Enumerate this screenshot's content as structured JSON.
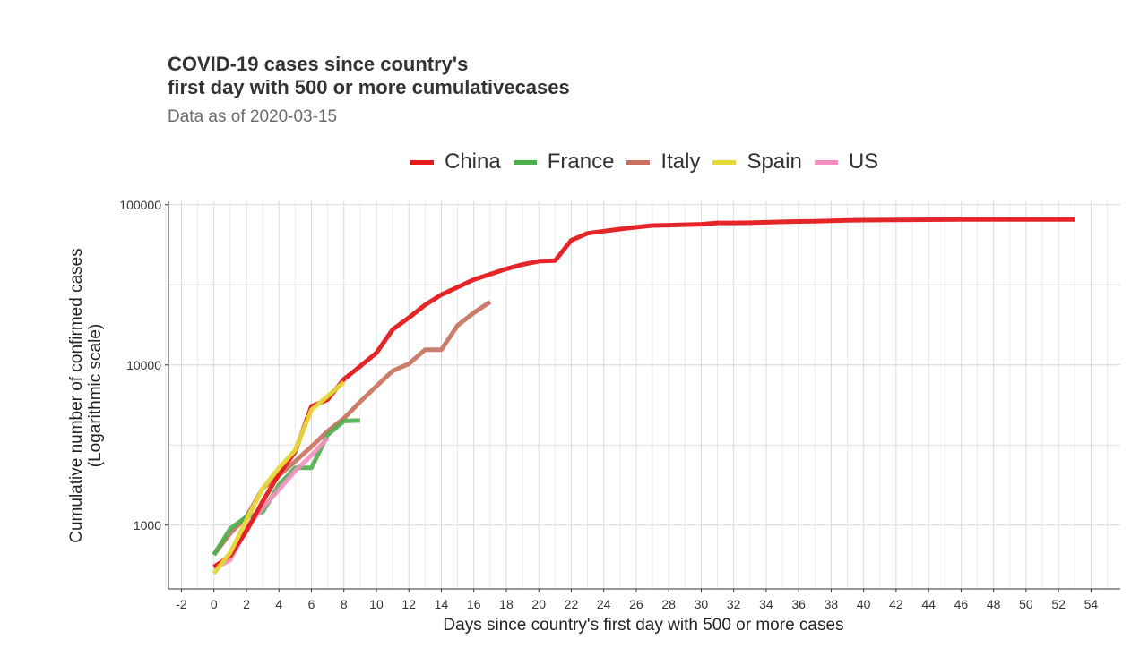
{
  "header": {
    "title_line1": "COVID-19 cases since country's",
    "title_line2": "first day with 500 or more cumulativecases",
    "subtitle": "Data as of 2020-03-15"
  },
  "chart_data": {
    "type": "line",
    "title": "COVID-19 cases since country's first day with 500 or more cumulativecases",
    "subtitle": "Data as of 2020-03-15",
    "xlabel": "Days since country's first day with 500 or more cases",
    "ylabel": "Cumulative number of confirmed cases (Logarithmic scale)",
    "ylabel_line1": "Cumulative number of confirmed cases",
    "ylabel_line2": "(Logarithmic scale)",
    "y_scale": "log",
    "xlim": [
      -2.8,
      55.8
    ],
    "ylim": [
      400,
      105000
    ],
    "x_ticks": [
      "-2",
      "0",
      "2",
      "4",
      "6",
      "8",
      "10",
      "12",
      "14",
      "16",
      "18",
      "20",
      "22",
      "24",
      "26",
      "28",
      "30",
      "32",
      "34",
      "36",
      "38",
      "40",
      "42",
      "44",
      "46",
      "48",
      "50",
      "52",
      "54"
    ],
    "y_ticks": [
      "1000",
      "10000",
      "100000"
    ],
    "grid": true,
    "legend_position": "top",
    "series": [
      {
        "name": "China",
        "color": "#e41a1c",
        "x": [
          0,
          1,
          2,
          3,
          4,
          5,
          6,
          7,
          8,
          9,
          10,
          11,
          12,
          13,
          14,
          15,
          16,
          17,
          18,
          19,
          20,
          21,
          22,
          23,
          24,
          25,
          26,
          27,
          28,
          29,
          30,
          31,
          32,
          33,
          34,
          35,
          36,
          37,
          38,
          39,
          40,
          41,
          42,
          43,
          44,
          45,
          46,
          47,
          48,
          49,
          50,
          51,
          52,
          53
        ],
        "y": [
          548,
          643,
          920,
          1406,
          2075,
          2877,
          5509,
          6087,
          8141,
          9802,
          11891,
          16630,
          19716,
          23707,
          27440,
          30587,
          34110,
          36814,
          39829,
          42354,
          44386,
          44759,
          59895,
          66358,
          68413,
          70513,
          72434,
          74211,
          74619,
          75077,
          75550,
          77001,
          77022,
          77241,
          77754,
          78166,
          78600,
          78928,
          79356,
          79932,
          80136,
          80261,
          80386,
          80537,
          80690,
          80770,
          80823,
          80860,
          80887,
          80921,
          80932,
          80945,
          80977,
          81003
        ]
      },
      {
        "name": "France",
        "color": "#4daf4a",
        "x": [
          0,
          1,
          2,
          3,
          4,
          5,
          6,
          7,
          8,
          9
        ],
        "y": [
          653,
          949,
          1126,
          1209,
          1784,
          2281,
          2281,
          3661,
          4469,
          4499
        ]
      },
      {
        "name": "Italy",
        "color": "#c7705d",
        "x": [
          0,
          1,
          2,
          3,
          4,
          5,
          6,
          7,
          8,
          9,
          10,
          11,
          12,
          13,
          14,
          15,
          16,
          17
        ],
        "y": [
          655,
          888,
          1128,
          1694,
          2036,
          2502,
          3089,
          3858,
          4636,
          5883,
          7375,
          9172,
          10149,
          12462,
          12462,
          17660,
          21157,
          24747
        ]
      },
      {
        "name": "Spain",
        "color": "#e6d93a",
        "x": [
          0,
          1,
          2,
          3,
          4,
          5,
          6,
          7,
          8
        ],
        "y": [
          500,
          673,
          1073,
          1695,
          2277,
          2943,
          5232,
          6391,
          7798
        ]
      },
      {
        "name": "US",
        "color": "#f48fc1",
        "x": [
          0,
          1,
          2,
          3,
          4,
          5,
          6,
          7
        ],
        "y": [
          537,
          605,
          959,
          1281,
          1663,
          2179,
          2727,
          3499
        ]
      }
    ]
  }
}
